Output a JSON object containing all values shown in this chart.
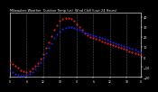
{
  "title": "Milwaukee Weather  Outdoor Temp (vs)  Wind Chill (Last 24 Hours)",
  "bg_color": "#000000",
  "plot_bg": "#000000",
  "grid_color": "#555555",
  "temp_color": "#ff2222",
  "chill_color": "#2222ff",
  "ylim": [
    -20,
    45
  ],
  "yticks": [
    -20,
    -10,
    0,
    10,
    20,
    30,
    40
  ],
  "temp_x": [
    0,
    1,
    2,
    3,
    4,
    5,
    6,
    7,
    8,
    9,
    10,
    11,
    12,
    13,
    14,
    15,
    16,
    17,
    18,
    19,
    20,
    21,
    22,
    23,
    24,
    25,
    26,
    27,
    28,
    29,
    30,
    31,
    32,
    33,
    34,
    35,
    36,
    37,
    38,
    39,
    40,
    41,
    42,
    43,
    44,
    45,
    46,
    47
  ],
  "temp_y": [
    -5,
    -7,
    -9,
    -11,
    -13,
    -14,
    -15,
    -14,
    -12,
    -9,
    -6,
    -2,
    3,
    9,
    15,
    21,
    27,
    32,
    36,
    38,
    39,
    39,
    38,
    36,
    33,
    30,
    27,
    24,
    22,
    20,
    19,
    18,
    17,
    16,
    15,
    14,
    13,
    12,
    11,
    10,
    9,
    8,
    7,
    6,
    5,
    4,
    3,
    2
  ],
  "chill_x": [
    0,
    1,
    2,
    3,
    4,
    5,
    6,
    7,
    8,
    9,
    10,
    11,
    12,
    13,
    14,
    15,
    16,
    17,
    18,
    19,
    20,
    21,
    22,
    23,
    24,
    25,
    26,
    27,
    28,
    29,
    30,
    31,
    32,
    33,
    34,
    35,
    36,
    37,
    38,
    39,
    40,
    41,
    42,
    43,
    44,
    45,
    46,
    47
  ],
  "chill_y": [
    -13,
    -15,
    -17,
    -18,
    -19,
    -19,
    -18,
    -17,
    -15,
    -12,
    -9,
    -5,
    -1,
    4,
    9,
    14,
    19,
    23,
    26,
    28,
    29,
    30,
    30,
    29,
    28,
    27,
    26,
    25,
    24,
    23,
    22,
    21,
    20,
    19,
    18,
    17,
    16,
    15,
    14,
    13,
    12,
    11,
    10,
    9,
    8,
    7,
    6,
    5
  ],
  "vgrid_x": [
    6,
    12,
    18,
    24,
    30,
    36,
    42
  ],
  "title_color": "#ffffff",
  "tick_color": "#ffffff",
  "spine_color": "#ffffff"
}
